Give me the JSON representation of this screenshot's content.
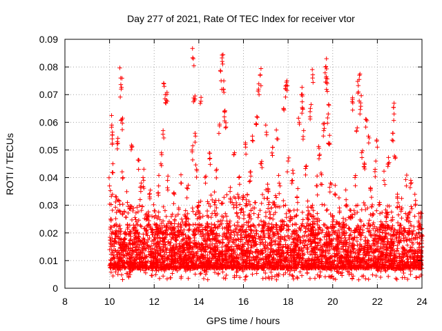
{
  "chart_data": {
    "type": "scatter",
    "title": "Day 277 of 2021, Rate Of TEC Index for receiver vtor",
    "xlabel": "GPS time / hours",
    "ylabel": "ROTI / TECUs",
    "xlim": [
      8,
      24
    ],
    "ylim": [
      0,
      0.09
    ],
    "x_ticks": [
      8,
      10,
      12,
      14,
      16,
      18,
      20,
      22,
      24
    ],
    "y_ticks": [
      0,
      0.01,
      0.02,
      0.03,
      0.04,
      0.05,
      0.06,
      0.07,
      0.08,
      0.09
    ],
    "x_tick_labels": [
      "8",
      "10",
      "12",
      "14",
      "16",
      "18",
      "20",
      "22",
      "24"
    ],
    "y_tick_labels": [
      "0",
      "0.01",
      "0.02",
      "0.03",
      "0.04",
      "0.05",
      "0.06",
      "0.07",
      "0.08",
      "0.09"
    ],
    "grid": true,
    "legend": "none",
    "marker": "plus",
    "marker_color": "#ff0000",
    "x_range_of_data": [
      10.0,
      24.0
    ],
    "series": [
      {
        "values_xy": [
          [
            10.0,
            0.037
          ],
          [
            10.05,
            0.025
          ],
          [
            10.1,
            0.059
          ],
          [
            10.12,
            0.054
          ],
          [
            10.15,
            0.045
          ],
          [
            10.2,
            0.012
          ],
          [
            10.25,
            0.02
          ],
          [
            10.3,
            0.033
          ],
          [
            10.35,
            0.053
          ],
          [
            10.4,
            0.01
          ],
          [
            10.45,
            0.028
          ],
          [
            10.5,
            0.076
          ],
          [
            10.52,
            0.072
          ],
          [
            10.55,
            0.061
          ],
          [
            10.6,
            0.04
          ],
          [
            10.7,
            0.018
          ],
          [
            10.8,
            0.031
          ],
          [
            10.9,
            0.009
          ],
          [
            11.0,
            0.051
          ],
          [
            11.1,
            0.022
          ],
          [
            11.2,
            0.014
          ],
          [
            11.3,
            0.043
          ],
          [
            11.4,
            0.035
          ],
          [
            11.5,
            0.04
          ],
          [
            11.6,
            0.011
          ],
          [
            11.7,
            0.025
          ],
          [
            11.8,
            0.033
          ],
          [
            11.9,
            0.017
          ],
          [
            12.0,
            0.028
          ],
          [
            12.1,
            0.01
          ],
          [
            12.2,
            0.037
          ],
          [
            12.3,
            0.045
          ],
          [
            12.4,
            0.057
          ],
          [
            12.45,
            0.073
          ],
          [
            12.5,
            0.07
          ],
          [
            12.55,
            0.068
          ],
          [
            12.6,
            0.039
          ],
          [
            12.7,
            0.012
          ],
          [
            12.8,
            0.021
          ],
          [
            12.9,
            0.034
          ],
          [
            13.0,
            0.015
          ],
          [
            13.1,
            0.029
          ],
          [
            13.2,
            0.041
          ],
          [
            13.3,
            0.009
          ],
          [
            13.4,
            0.026
          ],
          [
            13.5,
            0.036
          ],
          [
            13.6,
            0.018
          ],
          [
            13.7,
            0.05
          ],
          [
            13.75,
            0.083
          ],
          [
            13.8,
            0.068
          ],
          [
            13.85,
            0.055
          ],
          [
            13.9,
            0.043
          ],
          [
            14.0,
            0.03
          ],
          [
            14.1,
            0.069
          ],
          [
            14.2,
            0.012
          ],
          [
            14.3,
            0.038
          ],
          [
            14.4,
            0.022
          ],
          [
            14.5,
            0.047
          ],
          [
            14.6,
            0.016
          ],
          [
            14.7,
            0.031
          ],
          [
            14.8,
            0.043
          ],
          [
            14.9,
            0.056
          ],
          [
            15.0,
            0.075
          ],
          [
            15.05,
            0.082
          ],
          [
            15.1,
            0.072
          ],
          [
            15.15,
            0.064
          ],
          [
            15.2,
            0.058
          ],
          [
            15.3,
            0.021
          ],
          [
            15.4,
            0.035
          ],
          [
            15.5,
            0.011
          ],
          [
            15.6,
            0.049
          ],
          [
            15.7,
            0.027
          ],
          [
            15.8,
            0.04
          ],
          [
            15.9,
            0.014
          ],
          [
            16.0,
            0.033
          ],
          [
            16.1,
            0.051
          ],
          [
            16.2,
            0.019
          ],
          [
            16.3,
            0.042
          ],
          [
            16.4,
            0.055
          ],
          [
            16.5,
            0.029
          ],
          [
            16.6,
            0.062
          ],
          [
            16.7,
            0.07
          ],
          [
            16.75,
            0.077
          ],
          [
            16.8,
            0.045
          ],
          [
            16.9,
            0.024
          ],
          [
            17.0,
            0.059
          ],
          [
            17.1,
            0.036
          ],
          [
            17.2,
            0.013
          ],
          [
            17.3,
            0.048
          ],
          [
            17.4,
            0.03
          ],
          [
            17.5,
            0.054
          ],
          [
            17.6,
            0.038
          ],
          [
            17.7,
            0.021
          ],
          [
            17.8,
            0.065
          ],
          [
            17.9,
            0.072
          ],
          [
            17.95,
            0.075
          ],
          [
            18.0,
            0.046
          ],
          [
            18.1,
            0.026
          ],
          [
            18.2,
            0.039
          ],
          [
            18.3,
            0.015
          ],
          [
            18.4,
            0.033
          ],
          [
            18.5,
            0.06
          ],
          [
            18.6,
            0.07
          ],
          [
            18.65,
            0.065
          ],
          [
            18.7,
            0.057
          ],
          [
            18.8,
            0.044
          ],
          [
            18.9,
            0.028
          ],
          [
            19.0,
            0.065
          ],
          [
            19.1,
            0.076
          ],
          [
            19.2,
            0.019
          ],
          [
            19.3,
            0.037
          ],
          [
            19.4,
            0.048
          ],
          [
            19.5,
            0.041
          ],
          [
            19.6,
            0.057
          ],
          [
            19.7,
            0.076
          ],
          [
            19.72,
            0.083
          ],
          [
            19.75,
            0.074
          ],
          [
            19.8,
            0.063
          ],
          [
            19.85,
            0.052
          ],
          [
            19.9,
            0.038
          ],
          [
            20.0,
            0.024
          ],
          [
            20.1,
            0.034
          ],
          [
            20.2,
            0.016
          ],
          [
            20.3,
            0.029
          ],
          [
            20.4,
            0.011
          ],
          [
            20.5,
            0.022
          ],
          [
            20.6,
            0.032
          ],
          [
            20.7,
            0.014
          ],
          [
            20.8,
            0.026
          ],
          [
            20.9,
            0.067
          ],
          [
            21.0,
            0.04
          ],
          [
            21.1,
            0.058
          ],
          [
            21.15,
            0.071
          ],
          [
            21.2,
            0.077
          ],
          [
            21.25,
            0.067
          ],
          [
            21.3,
            0.049
          ],
          [
            21.4,
            0.044
          ],
          [
            21.5,
            0.061
          ],
          [
            21.6,
            0.055
          ],
          [
            21.7,
            0.036
          ],
          [
            21.8,
            0.023
          ],
          [
            21.9,
            0.043
          ],
          [
            22.0,
            0.051
          ],
          [
            22.1,
            0.031
          ],
          [
            22.2,
            0.018
          ],
          [
            22.3,
            0.039
          ],
          [
            22.4,
            0.027
          ],
          [
            22.5,
            0.045
          ],
          [
            22.6,
            0.012
          ],
          [
            22.7,
            0.056
          ],
          [
            22.75,
            0.063
          ],
          [
            22.8,
            0.047
          ],
          [
            22.9,
            0.034
          ],
          [
            23.0,
            0.02
          ],
          [
            23.1,
            0.029
          ],
          [
            23.2,
            0.012
          ],
          [
            23.3,
            0.037
          ],
          [
            23.4,
            0.024
          ],
          [
            23.5,
            0.039
          ],
          [
            23.6,
            0.016
          ],
          [
            23.7,
            0.03
          ],
          [
            23.8,
            0.011
          ],
          [
            23.9,
            0.023
          ],
          [
            23.95,
            0.009
          ],
          [
            24.0,
            0.015
          ]
        ]
      }
    ],
    "band": {
      "x_start": 10.0,
      "x_end": 24.0,
      "y_min": 0.003,
      "y_mode": 0.01,
      "y_upper_typical": 0.03,
      "profile_x": [
        10,
        10.5,
        11,
        11.5,
        12,
        12.5,
        13,
        13.5,
        14,
        14.5,
        15,
        15.5,
        16,
        16.5,
        17,
        17.5,
        18,
        18.5,
        19,
        19.5,
        20,
        20.5,
        21,
        21.5,
        22,
        22.5,
        23,
        23.5,
        24
      ],
      "profile_upper": [
        0.036,
        0.032,
        0.03,
        0.03,
        0.028,
        0.03,
        0.026,
        0.028,
        0.032,
        0.034,
        0.036,
        0.034,
        0.034,
        0.035,
        0.036,
        0.034,
        0.03,
        0.028,
        0.03,
        0.031,
        0.028,
        0.024,
        0.03,
        0.032,
        0.032,
        0.03,
        0.03,
        0.03,
        0.028
      ]
    }
  }
}
